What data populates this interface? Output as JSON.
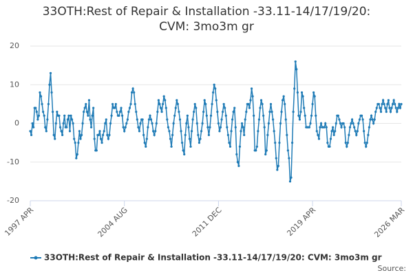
{
  "chart_data": {
    "type": "line",
    "title": "33OTH:Rest of Repair & Installation -33.11-14/17/19/20: CVM: 3mo3m gr",
    "source": "Source:",
    "categories": [
      "1997 APR",
      null,
      null,
      null,
      null,
      null,
      null,
      null,
      null,
      null,
      null,
      null,
      null,
      null,
      null,
      null,
      null,
      null,
      null,
      null,
      null,
      null,
      null,
      null,
      null,
      null,
      null,
      null,
      null,
      null,
      null,
      null,
      null,
      null,
      null,
      null,
      null,
      null,
      null,
      null,
      null,
      null,
      null,
      null,
      null,
      null,
      null,
      null,
      null,
      null,
      null,
      null,
      null,
      null,
      null,
      null,
      null,
      null,
      null,
      null,
      null,
      null,
      null,
      null,
      null,
      null,
      null,
      null,
      null,
      null,
      null,
      null,
      null,
      null,
      null,
      null,
      null,
      null,
      null,
      null,
      null,
      null,
      null,
      null,
      null,
      null,
      null,
      null,
      "2004 AUG",
      null,
      null,
      null,
      null,
      null,
      null,
      null,
      null,
      null,
      null,
      null,
      null,
      null,
      null,
      null,
      null,
      null,
      null,
      null,
      null,
      null,
      null,
      null,
      null,
      null,
      null,
      null,
      null,
      null,
      null,
      null,
      null,
      null,
      null,
      null,
      null,
      null,
      null,
      null,
      null,
      null,
      null,
      null,
      null,
      null,
      null,
      null,
      null,
      null,
      null,
      null,
      null,
      null,
      null,
      null,
      null,
      null,
      null,
      null,
      null,
      null,
      null,
      null,
      null,
      null,
      null,
      null,
      null,
      null,
      null,
      null,
      null,
      null,
      null,
      null,
      null,
      null,
      null,
      null,
      null,
      null,
      null,
      null,
      null,
      null,
      null,
      null,
      "2011 DEC",
      null,
      null,
      null,
      null,
      null,
      null,
      null,
      null,
      null,
      null,
      null,
      null,
      null,
      null,
      null,
      null,
      null,
      null,
      null,
      null,
      null,
      null,
      null,
      null,
      null,
      null,
      null,
      null,
      null,
      null,
      null,
      null,
      null,
      null,
      null,
      null,
      null,
      null,
      null,
      null,
      null,
      null,
      null,
      null,
      null,
      null,
      null,
      null,
      null,
      null,
      null,
      null,
      null,
      null,
      null,
      null,
      null,
      null,
      null,
      null,
      null,
      null,
      null,
      null,
      null,
      null,
      null,
      null,
      null,
      null,
      null,
      null,
      null,
      null,
      null,
      null,
      null,
      null,
      null,
      null,
      null,
      null,
      null,
      null,
      null,
      null,
      null,
      "2019 APR",
      null,
      null,
      null,
      null,
      null,
      null,
      null,
      null,
      null,
      null,
      null,
      null,
      null,
      null,
      null,
      null,
      null,
      null,
      null,
      null,
      null,
      null,
      null,
      null,
      null,
      null,
      null,
      null,
      null,
      null,
      null,
      null,
      null,
      null,
      null,
      null,
      null,
      null,
      null,
      null,
      null,
      null,
      null,
      null,
      null,
      null,
      null,
      null,
      null,
      null,
      null,
      null,
      null,
      null,
      null,
      null,
      null,
      null,
      null,
      null,
      null,
      null,
      null,
      null,
      null,
      null,
      null,
      null,
      null,
      null,
      null,
      null,
      null,
      null,
      null,
      null,
      null,
      null,
      null,
      null,
      null,
      null,
      "2026 MAR"
    ],
    "series": [
      {
        "name": "33OTH:Rest of Repair & Installation -33.11-14/17/19/20: CVM: 3mo3m gr",
        "color": "#1f7bb6",
        "values": [
          -2,
          -3,
          0,
          -1,
          4,
          4,
          3,
          1,
          2,
          8,
          7,
          5,
          3,
          2,
          -1,
          -2,
          1,
          5,
          10,
          13,
          8,
          3,
          -3,
          -4,
          0,
          3,
          2,
          2,
          -1,
          -2,
          -3,
          0,
          2,
          -1,
          -1,
          1,
          2,
          -2,
          2,
          1,
          0,
          -4,
          -5,
          -9,
          -8,
          -5,
          -2,
          -4,
          -3,
          0,
          3,
          4,
          5,
          3,
          2,
          6,
          1,
          -1,
          2,
          4,
          -4,
          -7,
          -7,
          -3,
          -3,
          -2,
          -4,
          -5,
          -3,
          -2,
          0,
          1,
          -3,
          -4,
          -3,
          0,
          2,
          5,
          4,
          4,
          5,
          3,
          2,
          2,
          3,
          4,
          2,
          -1,
          -2,
          -1,
          0,
          1,
          3,
          4,
          5,
          8,
          9,
          8,
          5,
          3,
          1,
          -1,
          -2,
          0,
          1,
          1,
          -3,
          -5,
          -6,
          -4,
          -1,
          1,
          2,
          1,
          0,
          -2,
          -3,
          -2,
          0,
          3,
          6,
          5,
          4,
          3,
          5,
          7,
          6,
          4,
          1,
          -1,
          -2,
          -4,
          -6,
          -3,
          0,
          2,
          4,
          6,
          5,
          3,
          1,
          -2,
          -5,
          -7,
          -8,
          -3,
          0,
          2,
          -1,
          -4,
          -6,
          -2,
          1,
          3,
          5,
          4,
          0,
          -3,
          -5,
          -4,
          -2,
          0,
          3,
          6,
          5,
          2,
          -1,
          -3,
          -1,
          2,
          5,
          8,
          10,
          9,
          6,
          3,
          0,
          -2,
          -1,
          1,
          3,
          5,
          4,
          2,
          -1,
          -3,
          -5,
          -6,
          -2,
          1,
          3,
          4,
          -1,
          -8,
          -10,
          -11,
          -6,
          -2,
          0,
          -1,
          -3,
          1,
          3,
          5,
          5,
          4,
          6,
          9,
          7,
          2,
          -7,
          -7,
          -6,
          -2,
          1,
          4,
          6,
          5,
          2,
          -1,
          -8,
          -7,
          -3,
          0,
          3,
          5,
          3,
          1,
          -2,
          -5,
          -9,
          -12,
          -11,
          -5,
          0,
          3,
          6,
          7,
          5,
          1,
          -3,
          -7,
          -9,
          -15,
          -14,
          -5,
          3,
          9,
          16,
          14,
          8,
          2,
          1,
          3,
          8,
          7,
          4,
          2,
          -1,
          -1,
          -1,
          -1,
          0,
          2,
          5,
          8,
          7,
          2,
          -2,
          -3,
          -4,
          -1,
          0,
          -1,
          -1,
          -1,
          0,
          -1,
          -5,
          -6,
          -6,
          -4,
          -2,
          -1,
          -3,
          -2,
          0,
          2,
          2,
          1,
          0,
          -1,
          0,
          0,
          -1,
          -5,
          -6,
          -5,
          -3,
          -1,
          0,
          1,
          0,
          -1,
          -2,
          -3,
          -2,
          0,
          1,
          2,
          2,
          1,
          -2,
          -5,
          -6,
          -5,
          -3,
          -1,
          1,
          2,
          1,
          0,
          1,
          3,
          4,
          5,
          5,
          4,
          3,
          5,
          6,
          5,
          4,
          3,
          5,
          6,
          4,
          3,
          4,
          5,
          6,
          5,
          4,
          3,
          4,
          5,
          4,
          5
        ]
      }
    ],
    "ylim": [
      -20,
      20
    ],
    "yticks": [
      -20,
      -10,
      0,
      10,
      20
    ],
    "grid": true
  }
}
